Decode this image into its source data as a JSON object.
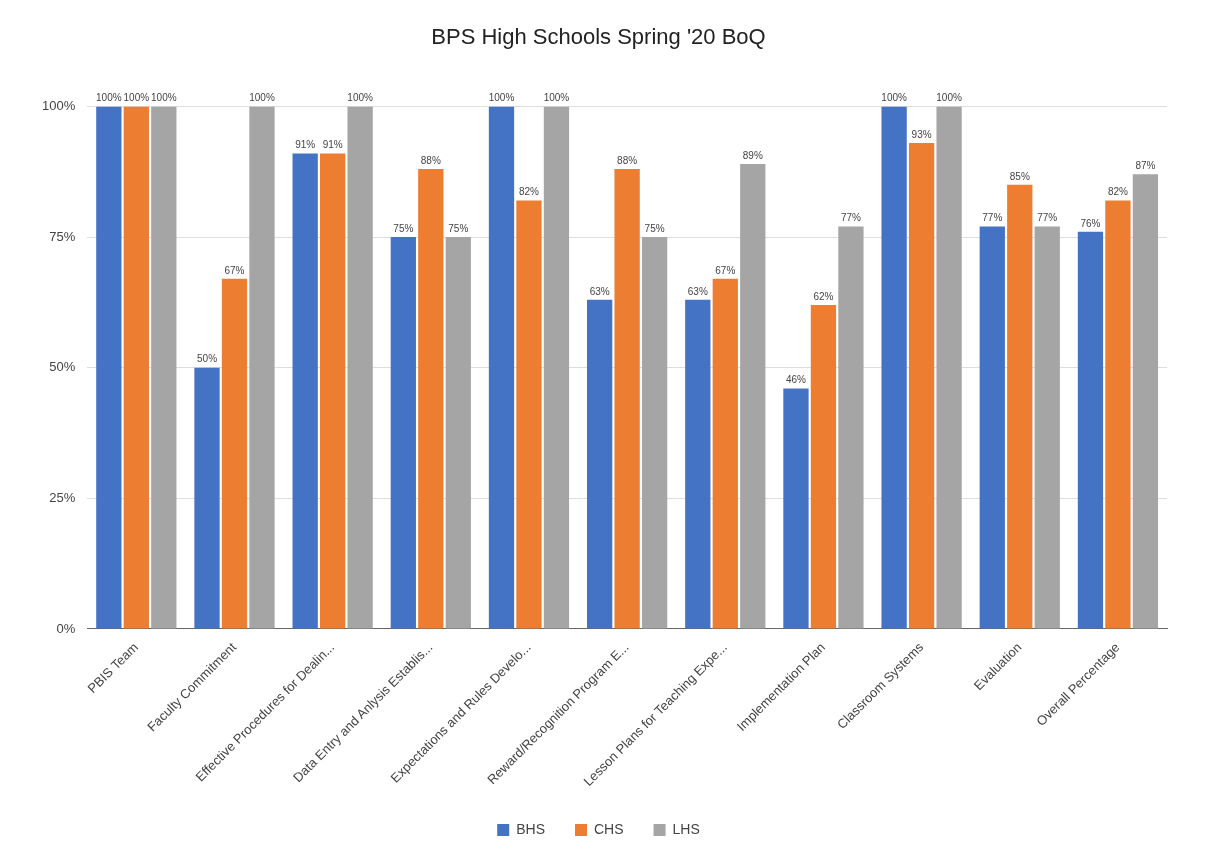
{
  "chart_data": {
    "type": "bar",
    "title": "BPS High Schools Spring '20 BoQ",
    "categories": [
      "PBIS Team",
      "Faculty Commitment",
      "Effective Procedures for Dealin...",
      "Data Entry and Anlysis Establis...",
      "Expectations and Rules Develo...",
      "Reward/Recognition Program E...",
      "Lesson Plans for Teaching Expe...",
      "Implementation Plan",
      "Classroom Systems",
      "Evaluation",
      "Overall Percentage"
    ],
    "series": [
      {
        "name": "BHS",
        "color": "#4472c4",
        "values": [
          100,
          50,
          91,
          75,
          100,
          63,
          63,
          46,
          100,
          77,
          76
        ],
        "value_labels": [
          "100%",
          "50%",
          "91%",
          "75%",
          "100%",
          "63%",
          "63%",
          "46%",
          "100%",
          "77%",
          "76%"
        ]
      },
      {
        "name": "CHS",
        "color": "#ed7d31",
        "values": [
          100,
          67,
          91,
          88,
          82,
          88,
          67,
          62,
          93,
          85,
          82
        ],
        "value_labels": [
          "100%",
          "67%",
          "91%",
          "88%",
          "82%",
          "88%",
          "67%",
          "62%",
          "93%",
          "85%",
          "82%"
        ]
      },
      {
        "name": "LHS",
        "color": "#a5a5a5",
        "values": [
          100,
          100,
          100,
          75,
          100,
          75,
          89,
          77,
          100,
          77,
          87
        ],
        "value_labels": [
          "100%",
          "100%",
          "100%",
          "75%",
          "100%",
          "75%",
          "89%",
          "77%",
          "100%",
          "77%",
          "87%"
        ]
      }
    ],
    "ylim": [
      0,
      100
    ],
    "yticks": [
      {
        "value": 0,
        "label": "0%"
      },
      {
        "value": 25,
        "label": "25%"
      },
      {
        "value": 50,
        "label": "50%"
      },
      {
        "value": 75,
        "label": "75%"
      },
      {
        "value": 100,
        "label": "100%"
      }
    ],
    "grid": "y",
    "legend": "bottom"
  }
}
